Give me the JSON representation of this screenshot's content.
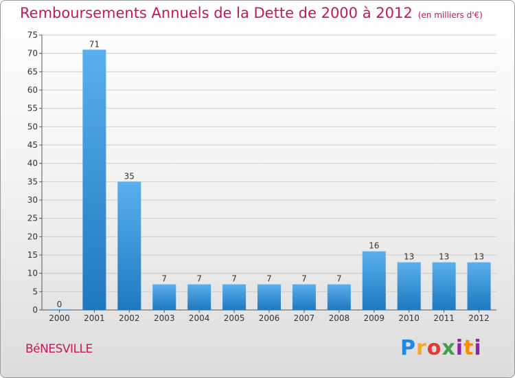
{
  "header": {
    "title": "Remboursements Annuels de la Dette de 2000 à 2012",
    "unit": "(en milliers d'€)"
  },
  "commune": "BéNESVILLE",
  "logo": {
    "text": "Proxiti"
  },
  "colors": {
    "title": "#c2185b",
    "bar_top": "#5ab0ec",
    "bar_bottom": "#1f78c0",
    "grid": "#cccccc"
  },
  "chart_data": {
    "type": "bar",
    "title": "Remboursements Annuels de la Dette de 2000 à 2012",
    "xlabel": "",
    "ylabel": "",
    "categories": [
      "2000",
      "2001",
      "2002",
      "2003",
      "2004",
      "2005",
      "2006",
      "2007",
      "2008",
      "2009",
      "2010",
      "2011",
      "2012"
    ],
    "values": [
      0,
      71,
      35,
      7,
      7,
      7,
      7,
      7,
      7,
      16,
      13,
      13,
      13
    ],
    "ylim": [
      0,
      75
    ],
    "yticks": [
      0,
      5,
      10,
      15,
      20,
      25,
      30,
      35,
      40,
      45,
      50,
      55,
      60,
      65,
      70,
      75
    ],
    "grid": true,
    "data_labels": true
  }
}
